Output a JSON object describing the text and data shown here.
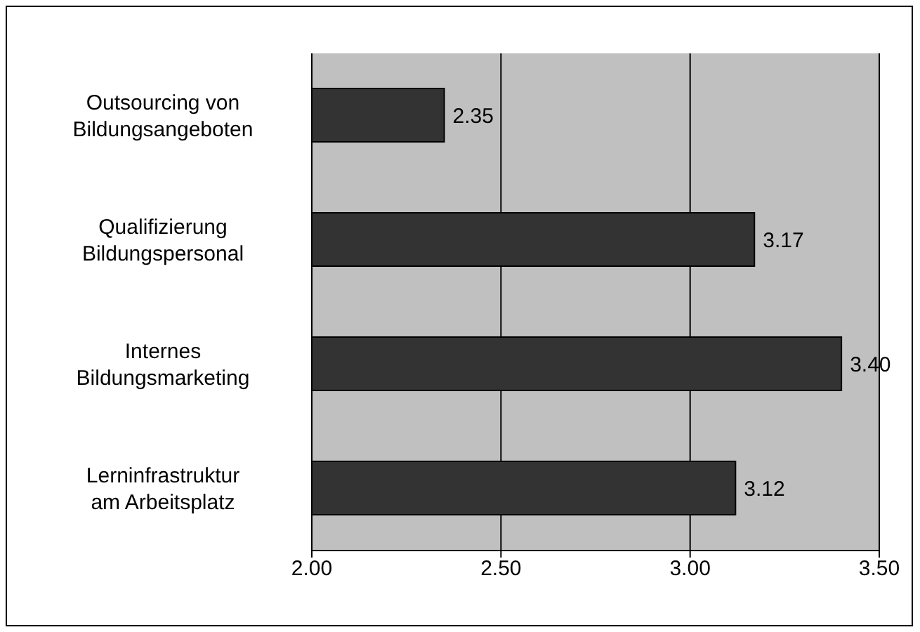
{
  "chart_data": {
    "type": "bar",
    "orientation": "horizontal",
    "categories": [
      "Outsourcing von Bildungsangeboten",
      "Qualifizierung Bildungspersonal",
      "Internes Bildungsmarketing",
      "Lerninfrastruktur am Arbeitsplatz"
    ],
    "values": [
      2.35,
      3.17,
      3.4,
      3.12
    ],
    "value_labels": [
      "2.35",
      "3.17",
      "3.40",
      "3.12"
    ],
    "color": "#333333",
    "xlim": [
      2,
      3.5
    ],
    "xticks": [
      {
        "value": 2,
        "label": "2.00"
      },
      {
        "value": 2.5,
        "label": "2.50"
      },
      {
        "value": 3,
        "label": "3.00"
      },
      {
        "value": 3.5,
        "label": "3.50"
      }
    ],
    "grid": "x"
  }
}
